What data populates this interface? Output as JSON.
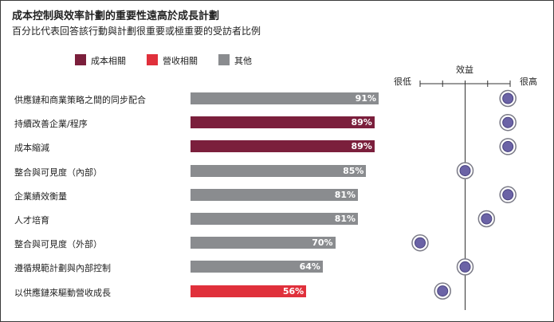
{
  "header": {
    "title": "成本控制與效率計劃的重要性遠高於成長計劃",
    "subtitle": "百分比代表回答該行動與計劃很重要或極重要的受訪者比例"
  },
  "legend": [
    {
      "label": "成本相關",
      "color": "#7b1f3c"
    },
    {
      "label": "營收相關",
      "color": "#e0303b"
    },
    {
      "label": "其他",
      "color": "#8a8c8f"
    }
  ],
  "benefit_axis": {
    "title": "效益",
    "low_label": "很低",
    "high_label": "很高"
  },
  "chart_data": {
    "type": "bar",
    "orientation": "horizontal",
    "title": "成本控制與效率計劃的重要性遠高於成長計劃",
    "subtitle": "百分比代表回答該行動與計劃很重要或極重要的受訪者比例",
    "categories": [
      "供應鏈和商業策略之間的同步配合",
      "持續改善企業/程序",
      "成本縮減",
      "整合與可見度（內部）",
      "企業績效衡量",
      "人才培育",
      "整合與可見度（外部）",
      "遵循規範計劃與內部控制",
      "以供應鏈來驅動營收成長"
    ],
    "values": [
      91,
      89,
      89,
      85,
      81,
      81,
      70,
      64,
      56
    ],
    "value_labels": [
      "91%",
      "89%",
      "89%",
      "85%",
      "81%",
      "81%",
      "70%",
      "64%",
      "56%"
    ],
    "groups": [
      "其他",
      "成本相關",
      "成本相關",
      "其他",
      "其他",
      "其他",
      "其他",
      "其他",
      "營收相關"
    ],
    "value_unit": "%",
    "benefit": {
      "axis_label": "效益",
      "scale": [
        "很低",
        "很高"
      ],
      "range": [
        0,
        4
      ],
      "ticks": [
        0,
        1,
        2,
        3,
        4
      ],
      "values": [
        3.9,
        3.9,
        3.9,
        2.0,
        3.9,
        2.95,
        0.0,
        2.0,
        1.0
      ]
    }
  }
}
